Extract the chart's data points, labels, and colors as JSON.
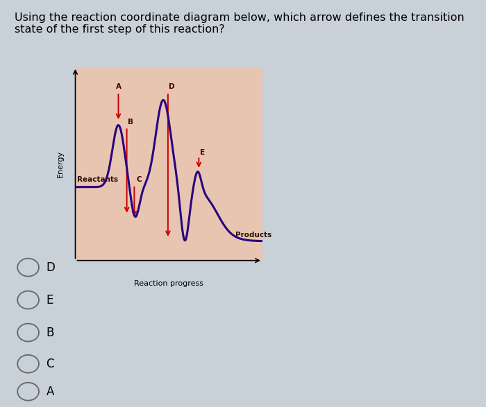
{
  "title": "Using the reaction coordinate diagram below, which arrow defines the transition\nstate of the first step of this reaction?",
  "title_fontsize": 11.5,
  "xlabel": "Reaction progress",
  "ylabel": "Energy",
  "bg_color": "#e8c5b0",
  "fig_bg": "#c8d0d8",
  "curve_color": "#2a0080",
  "arrow_color": "#cc0000",
  "label_color": "#440000",
  "reactants_label": "Reactants",
  "products_label": "Products",
  "options": [
    "D",
    "E",
    "B",
    "C",
    "A"
  ]
}
